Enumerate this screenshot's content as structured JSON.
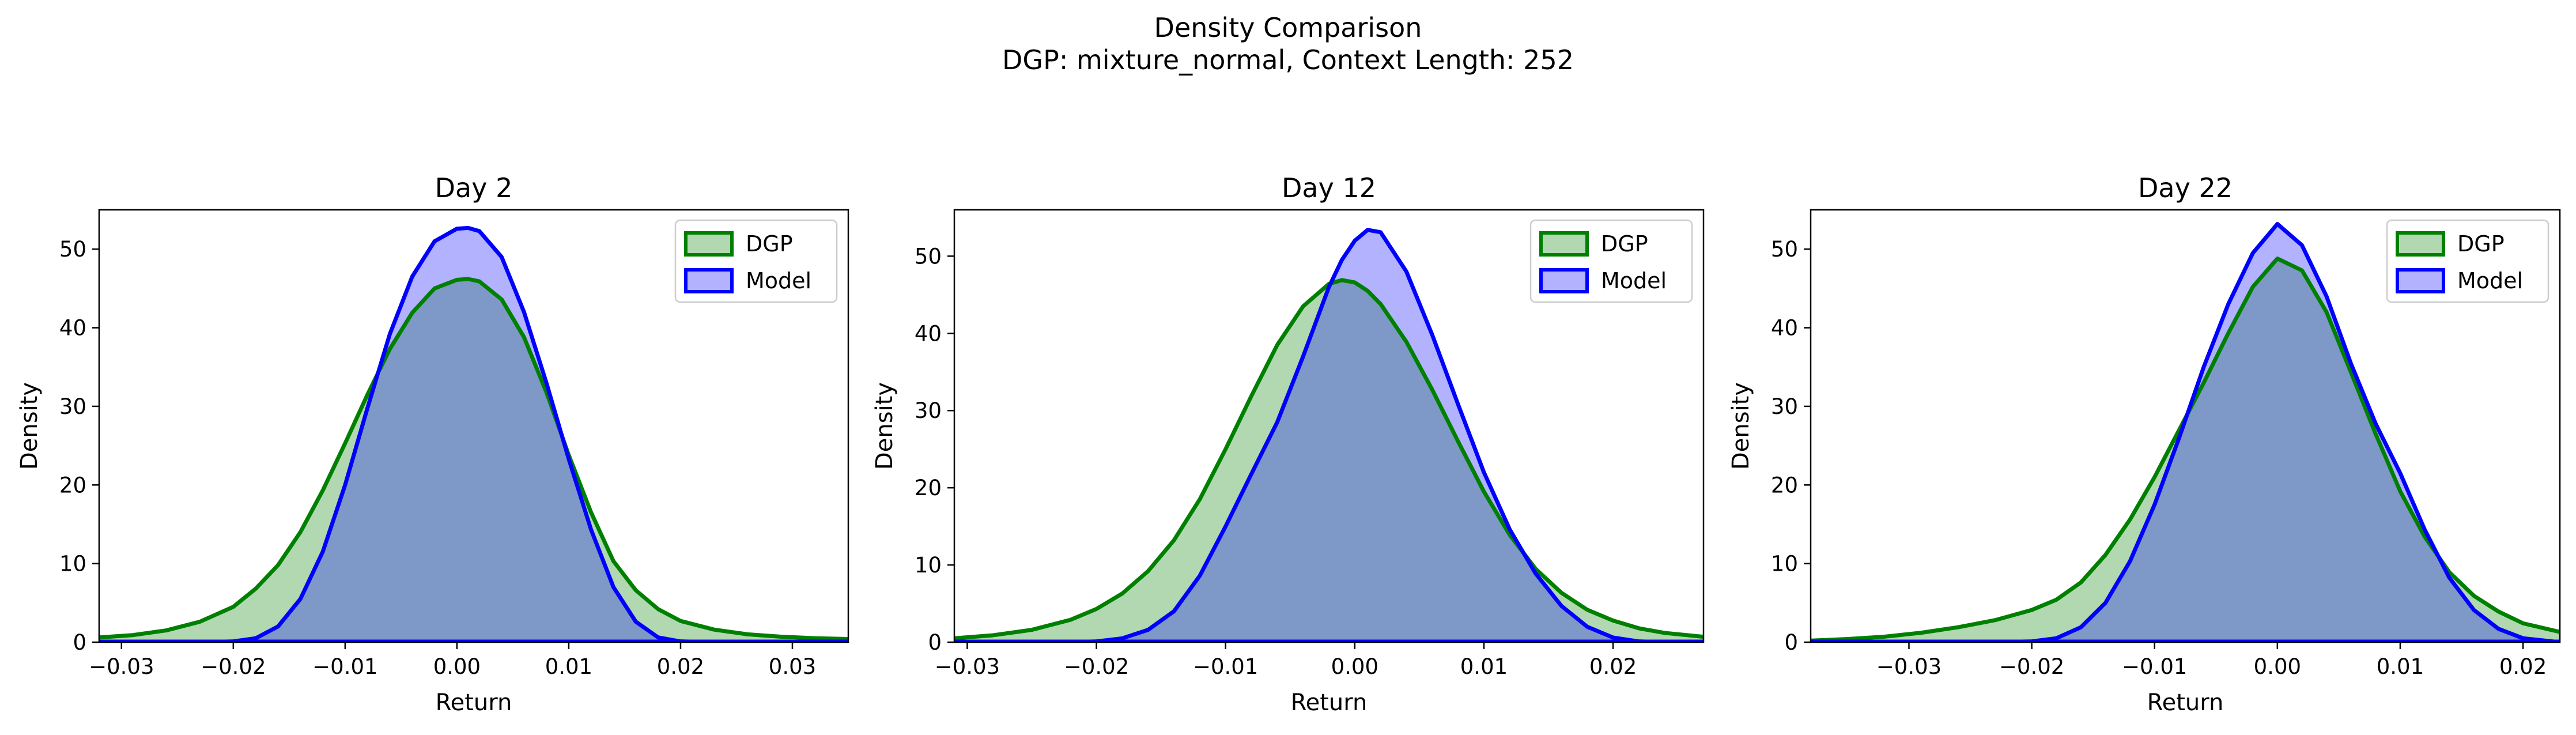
{
  "figure": {
    "title_line1": "Density Comparison",
    "title_line2": "DGP: mixture_normal, Context Length: 252"
  },
  "colors": {
    "dgp_line": "#008000",
    "dgp_fill": "#b2d8b2",
    "model_line": "#0000ff",
    "model_fill": "#b2b2ff",
    "overlap_fill": "#7e99c8"
  },
  "chart_data": [
    {
      "type": "area",
      "title": "Day 2",
      "xlabel": "Return",
      "ylabel": "Density",
      "xlim": [
        -0.032,
        0.035
      ],
      "ylim": [
        0,
        55
      ],
      "xticks": [
        "−0.03",
        "−0.02",
        "−0.01",
        "0.00",
        "0.01",
        "0.02",
        "0.03"
      ],
      "xtick_values": [
        -0.03,
        -0.02,
        -0.01,
        0.0,
        0.01,
        0.02,
        0.03
      ],
      "yticks": [
        "0",
        "10",
        "20",
        "30",
        "40",
        "50"
      ],
      "ytick_values": [
        0,
        10,
        20,
        30,
        40,
        50
      ],
      "legend": "top-right",
      "grid": false,
      "x": [
        -0.032,
        -0.029,
        -0.026,
        -0.023,
        -0.02,
        -0.018,
        -0.016,
        -0.014,
        -0.012,
        -0.01,
        -0.008,
        -0.006,
        -0.004,
        -0.002,
        0.0,
        0.001,
        0.002,
        0.004,
        0.006,
        0.008,
        0.01,
        0.012,
        0.014,
        0.016,
        0.018,
        0.02,
        0.023,
        0.026,
        0.029,
        0.032,
        0.035
      ],
      "series": [
        {
          "name": "DGP",
          "values": [
            0.6,
            0.9,
            1.5,
            2.6,
            4.5,
            6.8,
            9.8,
            14.0,
            19.3,
            25.3,
            31.5,
            37.3,
            41.9,
            45.0,
            46.1,
            46.2,
            45.9,
            43.6,
            38.8,
            31.8,
            23.8,
            16.5,
            10.3,
            6.6,
            4.2,
            2.7,
            1.6,
            1.0,
            0.7,
            0.5,
            0.4
          ]
        },
        {
          "name": "Model",
          "values": [
            0.0,
            0.0,
            0.0,
            0.0,
            0.1,
            0.5,
            2.0,
            5.5,
            11.5,
            20.0,
            29.8,
            39.2,
            46.5,
            51.0,
            52.6,
            52.7,
            52.3,
            49.0,
            42.0,
            33.0,
            23.3,
            14.3,
            7.0,
            2.6,
            0.6,
            0.1,
            0.0,
            0.0,
            0.0,
            0.0,
            0.0
          ]
        }
      ]
    },
    {
      "type": "area",
      "title": "Day 12",
      "xlabel": "Return",
      "ylabel": "Density",
      "xlim": [
        -0.031,
        0.027
      ],
      "ylim": [
        0,
        56
      ],
      "xticks": [
        "−0.03",
        "−0.02",
        "−0.01",
        "0.00",
        "0.01",
        "0.02"
      ],
      "xtick_values": [
        -0.03,
        -0.02,
        -0.01,
        0.0,
        0.01,
        0.02
      ],
      "yticks": [
        "0",
        "10",
        "20",
        "30",
        "40",
        "50"
      ],
      "ytick_values": [
        0,
        10,
        20,
        30,
        40,
        50
      ],
      "legend": "top-right",
      "grid": false,
      "x": [
        -0.031,
        -0.028,
        -0.025,
        -0.022,
        -0.02,
        -0.018,
        -0.016,
        -0.014,
        -0.012,
        -0.01,
        -0.008,
        -0.006,
        -0.004,
        -0.002,
        -0.001,
        0.0,
        0.001,
        0.002,
        0.004,
        0.006,
        0.008,
        0.01,
        0.012,
        0.014,
        0.016,
        0.018,
        0.02,
        0.022,
        0.024,
        0.027
      ],
      "series": [
        {
          "name": "DGP",
          "values": [
            0.5,
            0.9,
            1.6,
            2.9,
            4.3,
            6.3,
            9.2,
            13.2,
            18.5,
            25.0,
            31.9,
            38.5,
            43.5,
            46.4,
            46.9,
            46.6,
            45.5,
            43.8,
            38.9,
            32.7,
            26.0,
            19.5,
            13.9,
            9.5,
            6.4,
            4.2,
            2.8,
            1.8,
            1.2,
            0.7
          ]
        },
        {
          "name": "Model",
          "values": [
            0.0,
            0.0,
            0.0,
            0.0,
            0.1,
            0.5,
            1.6,
            4.0,
            8.6,
            15.0,
            21.8,
            28.5,
            37.0,
            46.0,
            49.5,
            52.0,
            53.4,
            53.1,
            48.0,
            39.8,
            30.8,
            22.0,
            14.6,
            8.9,
            4.7,
            2.0,
            0.6,
            0.1,
            0.0,
            0.0
          ]
        }
      ]
    },
    {
      "type": "area",
      "title": "Day 22",
      "xlabel": "Return",
      "ylabel": "Density",
      "xlim": [
        -0.038,
        0.023
      ],
      "ylim": [
        0,
        55
      ],
      "xticks": [
        "−0.03",
        "−0.02",
        "−0.01",
        "0.00",
        "0.01",
        "0.02"
      ],
      "xtick_values": [
        -0.03,
        -0.02,
        -0.01,
        0.0,
        0.01,
        0.02
      ],
      "yticks": [
        "0",
        "10",
        "20",
        "30",
        "40",
        "50"
      ],
      "ytick_values": [
        0,
        10,
        20,
        30,
        40,
        50
      ],
      "legend": "top-right",
      "grid": false,
      "x": [
        -0.038,
        -0.035,
        -0.032,
        -0.029,
        -0.026,
        -0.023,
        -0.02,
        -0.018,
        -0.016,
        -0.014,
        -0.012,
        -0.01,
        -0.008,
        -0.006,
        -0.004,
        -0.002,
        0.0,
        0.002,
        0.004,
        0.006,
        0.008,
        0.01,
        0.012,
        0.014,
        0.016,
        0.018,
        0.02,
        0.023
      ],
      "series": [
        {
          "name": "DGP",
          "values": [
            0.2,
            0.4,
            0.7,
            1.2,
            1.9,
            2.8,
            4.1,
            5.4,
            7.6,
            11.1,
            15.6,
            21.0,
            27.0,
            33.0,
            39.3,
            45.2,
            48.8,
            47.3,
            42.0,
            34.3,
            26.5,
            19.2,
            13.4,
            8.9,
            5.9,
            3.9,
            2.4,
            1.3
          ]
        },
        {
          "name": "Model",
          "values": [
            0.0,
            0.0,
            0.0,
            0.0,
            0.0,
            0.0,
            0.1,
            0.5,
            1.9,
            5.0,
            10.3,
            17.5,
            26.0,
            35.0,
            43.0,
            49.5,
            53.2,
            50.5,
            44.0,
            35.4,
            27.8,
            21.5,
            14.3,
            8.2,
            4.1,
            1.7,
            0.5,
            0.0
          ]
        }
      ]
    }
  ]
}
